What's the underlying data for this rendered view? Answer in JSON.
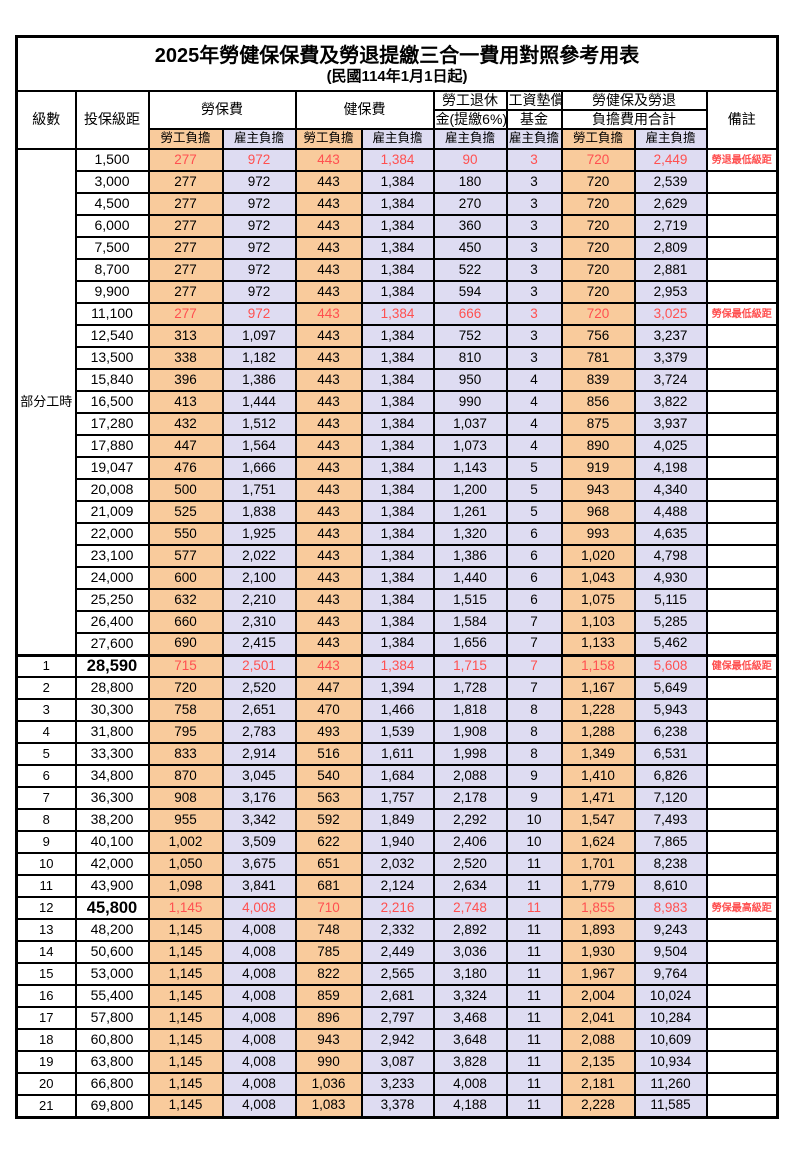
{
  "title": "2025年勞健保保費及勞退提繳三合一費用對照參考用表",
  "subtitle": "(民國114年1月1日起)",
  "colors": {
    "employee_bg": "#F9CB9C",
    "employer_bg": "#DEDCF2",
    "highlight_red": "#FF5050"
  },
  "header": {
    "level": "級數",
    "bracket": "投保級距",
    "labor_insurance": "勞保費",
    "health_insurance": "健保費",
    "pension_line1": "勞工退休",
    "pension_line2": "金(提繳6%)",
    "wage_fund_line1": "工資墊償",
    "wage_fund_line2": "基金",
    "total_line1": "勞健保及勞退",
    "total_line2": "負擔費用合計",
    "remark": "備註",
    "employee": "勞工負擔",
    "employer": "雇主負擔"
  },
  "part_time": {
    "label": "部分工時",
    "span": 23
  },
  "rows": [
    {
      "level": "",
      "bracket": "1,500",
      "v": [
        "277",
        "972",
        "443",
        "1,384",
        "90",
        "3",
        "720",
        "2,449"
      ],
      "remark": "勞退最低級距",
      "red": true,
      "big": false,
      "section": false
    },
    {
      "level": "",
      "bracket": "3,000",
      "v": [
        "277",
        "972",
        "443",
        "1,384",
        "180",
        "3",
        "720",
        "2,539"
      ],
      "remark": "",
      "red": false,
      "big": false,
      "section": false
    },
    {
      "level": "",
      "bracket": "4,500",
      "v": [
        "277",
        "972",
        "443",
        "1,384",
        "270",
        "3",
        "720",
        "2,629"
      ],
      "remark": "",
      "red": false,
      "big": false,
      "section": false
    },
    {
      "level": "",
      "bracket": "6,000",
      "v": [
        "277",
        "972",
        "443",
        "1,384",
        "360",
        "3",
        "720",
        "2,719"
      ],
      "remark": "",
      "red": false,
      "big": false,
      "section": false
    },
    {
      "level": "",
      "bracket": "7,500",
      "v": [
        "277",
        "972",
        "443",
        "1,384",
        "450",
        "3",
        "720",
        "2,809"
      ],
      "remark": "",
      "red": false,
      "big": false,
      "section": false
    },
    {
      "level": "",
      "bracket": "8,700",
      "v": [
        "277",
        "972",
        "443",
        "1,384",
        "522",
        "3",
        "720",
        "2,881"
      ],
      "remark": "",
      "red": false,
      "big": false,
      "section": false
    },
    {
      "level": "",
      "bracket": "9,900",
      "v": [
        "277",
        "972",
        "443",
        "1,384",
        "594",
        "3",
        "720",
        "2,953"
      ],
      "remark": "",
      "red": false,
      "big": false,
      "section": false
    },
    {
      "level": "",
      "bracket": "11,100",
      "v": [
        "277",
        "972",
        "443",
        "1,384",
        "666",
        "3",
        "720",
        "3,025"
      ],
      "remark": "勞保最低級距",
      "red": true,
      "big": false,
      "section": false
    },
    {
      "level": "",
      "bracket": "12,540",
      "v": [
        "313",
        "1,097",
        "443",
        "1,384",
        "752",
        "3",
        "756",
        "3,237"
      ],
      "remark": "",
      "red": false,
      "big": false,
      "section": false
    },
    {
      "level": "",
      "bracket": "13,500",
      "v": [
        "338",
        "1,182",
        "443",
        "1,384",
        "810",
        "3",
        "781",
        "3,379"
      ],
      "remark": "",
      "red": false,
      "big": false,
      "section": false
    },
    {
      "level": "",
      "bracket": "15,840",
      "v": [
        "396",
        "1,386",
        "443",
        "1,384",
        "950",
        "4",
        "839",
        "3,724"
      ],
      "remark": "",
      "red": false,
      "big": false,
      "section": false
    },
    {
      "level": "",
      "bracket": "16,500",
      "v": [
        "413",
        "1,444",
        "443",
        "1,384",
        "990",
        "4",
        "856",
        "3,822"
      ],
      "remark": "",
      "red": false,
      "big": false,
      "section": false
    },
    {
      "level": "",
      "bracket": "17,280",
      "v": [
        "432",
        "1,512",
        "443",
        "1,384",
        "1,037",
        "4",
        "875",
        "3,937"
      ],
      "remark": "",
      "red": false,
      "big": false,
      "section": false
    },
    {
      "level": "",
      "bracket": "17,880",
      "v": [
        "447",
        "1,564",
        "443",
        "1,384",
        "1,073",
        "4",
        "890",
        "4,025"
      ],
      "remark": "",
      "red": false,
      "big": false,
      "section": false
    },
    {
      "level": "",
      "bracket": "19,047",
      "v": [
        "476",
        "1,666",
        "443",
        "1,384",
        "1,143",
        "5",
        "919",
        "4,198"
      ],
      "remark": "",
      "red": false,
      "big": false,
      "section": false
    },
    {
      "level": "",
      "bracket": "20,008",
      "v": [
        "500",
        "1,751",
        "443",
        "1,384",
        "1,200",
        "5",
        "943",
        "4,340"
      ],
      "remark": "",
      "red": false,
      "big": false,
      "section": false
    },
    {
      "level": "",
      "bracket": "21,009",
      "v": [
        "525",
        "1,838",
        "443",
        "1,384",
        "1,261",
        "5",
        "968",
        "4,488"
      ],
      "remark": "",
      "red": false,
      "big": false,
      "section": false
    },
    {
      "level": "",
      "bracket": "22,000",
      "v": [
        "550",
        "1,925",
        "443",
        "1,384",
        "1,320",
        "6",
        "993",
        "4,635"
      ],
      "remark": "",
      "red": false,
      "big": false,
      "section": false
    },
    {
      "level": "",
      "bracket": "23,100",
      "v": [
        "577",
        "2,022",
        "443",
        "1,384",
        "1,386",
        "6",
        "1,020",
        "4,798"
      ],
      "remark": "",
      "red": false,
      "big": false,
      "section": false
    },
    {
      "level": "",
      "bracket": "24,000",
      "v": [
        "600",
        "2,100",
        "443",
        "1,384",
        "1,440",
        "6",
        "1,043",
        "4,930"
      ],
      "remark": "",
      "red": false,
      "big": false,
      "section": false
    },
    {
      "level": "",
      "bracket": "25,250",
      "v": [
        "632",
        "2,210",
        "443",
        "1,384",
        "1,515",
        "6",
        "1,075",
        "5,115"
      ],
      "remark": "",
      "red": false,
      "big": false,
      "section": false
    },
    {
      "level": "",
      "bracket": "26,400",
      "v": [
        "660",
        "2,310",
        "443",
        "1,384",
        "1,584",
        "7",
        "1,103",
        "5,285"
      ],
      "remark": "",
      "red": false,
      "big": false,
      "section": false
    },
    {
      "level": "",
      "bracket": "27,600",
      "v": [
        "690",
        "2,415",
        "443",
        "1,384",
        "1,656",
        "7",
        "1,133",
        "5,462"
      ],
      "remark": "",
      "red": false,
      "big": false,
      "section": false
    },
    {
      "level": "1",
      "bracket": "28,590",
      "v": [
        "715",
        "2,501",
        "443",
        "1,384",
        "1,715",
        "7",
        "1,158",
        "5,608"
      ],
      "remark": "健保最低級距",
      "red": true,
      "big": true,
      "section": true
    },
    {
      "level": "2",
      "bracket": "28,800",
      "v": [
        "720",
        "2,520",
        "447",
        "1,394",
        "1,728",
        "7",
        "1,167",
        "5,649"
      ],
      "remark": "",
      "red": false,
      "big": false,
      "section": false
    },
    {
      "level": "3",
      "bracket": "30,300",
      "v": [
        "758",
        "2,651",
        "470",
        "1,466",
        "1,818",
        "8",
        "1,228",
        "5,943"
      ],
      "remark": "",
      "red": false,
      "big": false,
      "section": false
    },
    {
      "level": "4",
      "bracket": "31,800",
      "v": [
        "795",
        "2,783",
        "493",
        "1,539",
        "1,908",
        "8",
        "1,288",
        "6,238"
      ],
      "remark": "",
      "red": false,
      "big": false,
      "section": false
    },
    {
      "level": "5",
      "bracket": "33,300",
      "v": [
        "833",
        "2,914",
        "516",
        "1,611",
        "1,998",
        "8",
        "1,349",
        "6,531"
      ],
      "remark": "",
      "red": false,
      "big": false,
      "section": false
    },
    {
      "level": "6",
      "bracket": "34,800",
      "v": [
        "870",
        "3,045",
        "540",
        "1,684",
        "2,088",
        "9",
        "1,410",
        "6,826"
      ],
      "remark": "",
      "red": false,
      "big": false,
      "section": false
    },
    {
      "level": "7",
      "bracket": "36,300",
      "v": [
        "908",
        "3,176",
        "563",
        "1,757",
        "2,178",
        "9",
        "1,471",
        "7,120"
      ],
      "remark": "",
      "red": false,
      "big": false,
      "section": false
    },
    {
      "level": "8",
      "bracket": "38,200",
      "v": [
        "955",
        "3,342",
        "592",
        "1,849",
        "2,292",
        "10",
        "1,547",
        "7,493"
      ],
      "remark": "",
      "red": false,
      "big": false,
      "section": false
    },
    {
      "level": "9",
      "bracket": "40,100",
      "v": [
        "1,002",
        "3,509",
        "622",
        "1,940",
        "2,406",
        "10",
        "1,624",
        "7,865"
      ],
      "remark": "",
      "red": false,
      "big": false,
      "section": false
    },
    {
      "level": "10",
      "bracket": "42,000",
      "v": [
        "1,050",
        "3,675",
        "651",
        "2,032",
        "2,520",
        "11",
        "1,701",
        "8,238"
      ],
      "remark": "",
      "red": false,
      "big": false,
      "section": false
    },
    {
      "level": "11",
      "bracket": "43,900",
      "v": [
        "1,098",
        "3,841",
        "681",
        "2,124",
        "2,634",
        "11",
        "1,779",
        "8,610"
      ],
      "remark": "",
      "red": false,
      "big": false,
      "section": false
    },
    {
      "level": "12",
      "bracket": "45,800",
      "v": [
        "1,145",
        "4,008",
        "710",
        "2,216",
        "2,748",
        "11",
        "1,855",
        "8,983"
      ],
      "remark": "勞保最高級距",
      "red": true,
      "big": true,
      "section": false
    },
    {
      "level": "13",
      "bracket": "48,200",
      "v": [
        "1,145",
        "4,008",
        "748",
        "2,332",
        "2,892",
        "11",
        "1,893",
        "9,243"
      ],
      "remark": "",
      "red": false,
      "big": false,
      "section": false
    },
    {
      "level": "14",
      "bracket": "50,600",
      "v": [
        "1,145",
        "4,008",
        "785",
        "2,449",
        "3,036",
        "11",
        "1,930",
        "9,504"
      ],
      "remark": "",
      "red": false,
      "big": false,
      "section": false
    },
    {
      "level": "15",
      "bracket": "53,000",
      "v": [
        "1,145",
        "4,008",
        "822",
        "2,565",
        "3,180",
        "11",
        "1,967",
        "9,764"
      ],
      "remark": "",
      "red": false,
      "big": false,
      "section": false
    },
    {
      "level": "16",
      "bracket": "55,400",
      "v": [
        "1,145",
        "4,008",
        "859",
        "2,681",
        "3,324",
        "11",
        "2,004",
        "10,024"
      ],
      "remark": "",
      "red": false,
      "big": false,
      "section": false
    },
    {
      "level": "17",
      "bracket": "57,800",
      "v": [
        "1,145",
        "4,008",
        "896",
        "2,797",
        "3,468",
        "11",
        "2,041",
        "10,284"
      ],
      "remark": "",
      "red": false,
      "big": false,
      "section": false
    },
    {
      "level": "18",
      "bracket": "60,800",
      "v": [
        "1,145",
        "4,008",
        "943",
        "2,942",
        "3,648",
        "11",
        "2,088",
        "10,609"
      ],
      "remark": "",
      "red": false,
      "big": false,
      "section": false
    },
    {
      "level": "19",
      "bracket": "63,800",
      "v": [
        "1,145",
        "4,008",
        "990",
        "3,087",
        "3,828",
        "11",
        "2,135",
        "10,934"
      ],
      "remark": "",
      "red": false,
      "big": false,
      "section": false
    },
    {
      "level": "20",
      "bracket": "66,800",
      "v": [
        "1,145",
        "4,008",
        "1,036",
        "3,233",
        "4,008",
        "11",
        "2,181",
        "11,260"
      ],
      "remark": "",
      "red": false,
      "big": false,
      "section": false
    },
    {
      "level": "21",
      "bracket": "69,800",
      "v": [
        "1,145",
        "4,008",
        "1,083",
        "3,378",
        "4,188",
        "11",
        "2,228",
        "11,585"
      ],
      "remark": "",
      "red": false,
      "big": false,
      "section": false
    }
  ]
}
